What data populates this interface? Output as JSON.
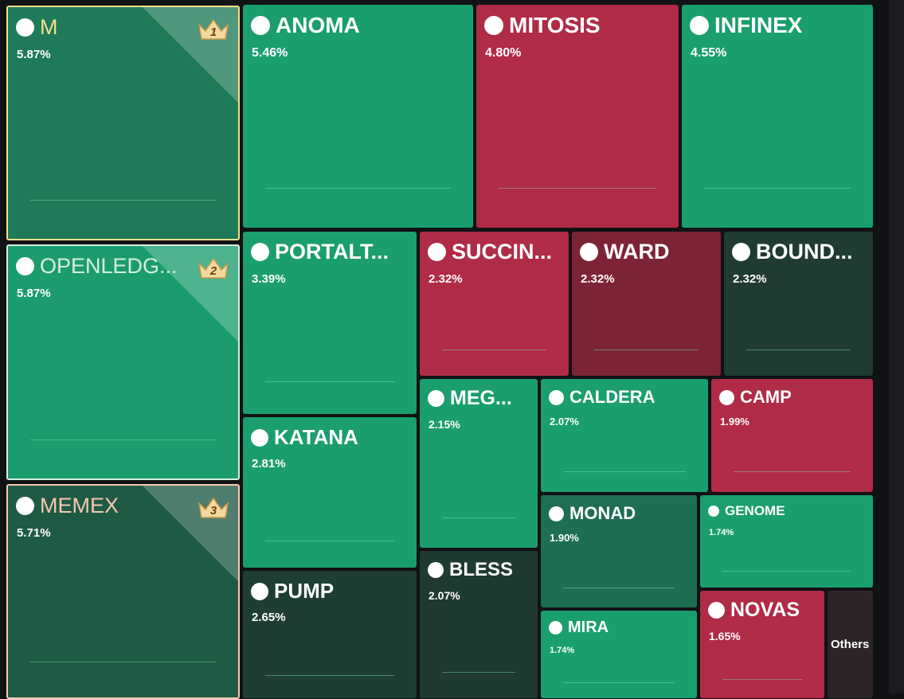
{
  "chart_data": {
    "type": "treemap",
    "items": [
      {
        "name": "M",
        "value": 5.87,
        "value_label": "5.87%",
        "rank": "1",
        "color": "#1e7a58"
      },
      {
        "name": "OPENLEDG...",
        "value": 5.87,
        "value_label": "5.87%",
        "rank": "2",
        "color": "#1c9c6e"
      },
      {
        "name": "MEMEX",
        "value": 5.71,
        "value_label": "5.71%",
        "rank": "3",
        "color": "#1f5a45"
      },
      {
        "name": "ANOMA",
        "value": 5.46,
        "value_label": "5.46%",
        "color": "#1a9e6e"
      },
      {
        "name": "MITOSIS",
        "value": 4.8,
        "value_label": "4.80%",
        "color": "#b02b46"
      },
      {
        "name": "INFINEX",
        "value": 4.55,
        "value_label": "4.55%",
        "color": "#1a9e6e"
      },
      {
        "name": "PORTALT...",
        "value": 3.39,
        "value_label": "3.39%",
        "color": "#1a9e6e"
      },
      {
        "name": "SUCCIN...",
        "value": 2.32,
        "value_label": "2.32%",
        "color": "#b02b46"
      },
      {
        "name": "WARD",
        "value": 2.32,
        "value_label": "2.32%",
        "color": "#7c2436"
      },
      {
        "name": "BOUND...",
        "value": 2.32,
        "value_label": "2.32%",
        "color": "#1f3b33"
      },
      {
        "name": "KATANA",
        "value": 2.81,
        "value_label": "2.81%",
        "color": "#1a9e6e"
      },
      {
        "name": "MEG...",
        "value": 2.15,
        "value_label": "2.15%",
        "color": "#1a9e6e"
      },
      {
        "name": "CALDERA",
        "value": 2.07,
        "value_label": "2.07%",
        "color": "#1a9e6e"
      },
      {
        "name": "CAMP",
        "value": 1.99,
        "value_label": "1.99%",
        "color": "#b02b46"
      },
      {
        "name": "PUMP",
        "value": 2.65,
        "value_label": "2.65%",
        "color": "#1e3e34"
      },
      {
        "name": "BLESS",
        "value": 2.07,
        "value_label": "2.07%",
        "color": "#1e3a32"
      },
      {
        "name": "MONAD",
        "value": 1.9,
        "value_label": "1.90%",
        "color": "#1d6e52"
      },
      {
        "name": "GENOME",
        "value": 1.74,
        "value_label": "1.74%",
        "color": "#1a9e6e"
      },
      {
        "name": "MIRA",
        "value": 1.74,
        "value_label": "1.74%",
        "color": "#1a9e6e"
      },
      {
        "name": "NOVAS",
        "value": 1.65,
        "value_label": "1.65%",
        "color": "#b02b46"
      },
      {
        "name": "Others",
        "color": "#2c2428"
      }
    ]
  }
}
